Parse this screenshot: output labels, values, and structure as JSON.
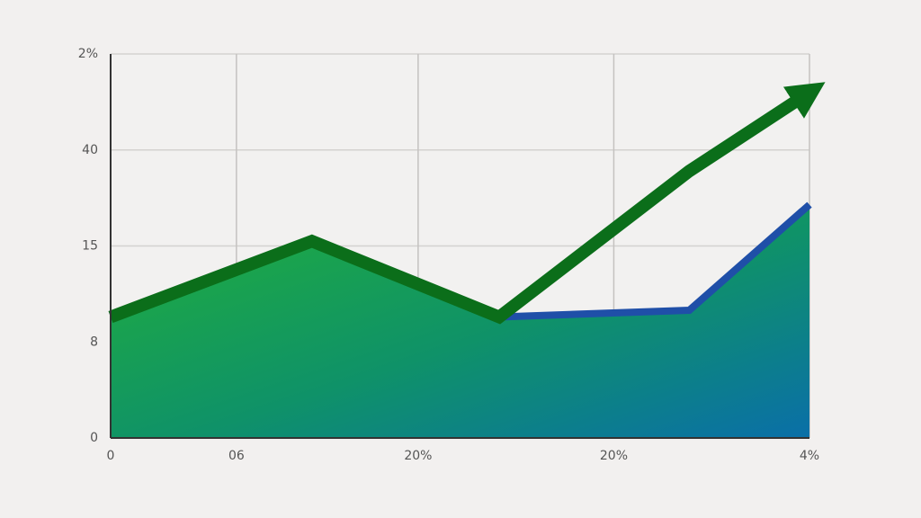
{
  "chart_data": {
    "type": "area",
    "x": [
      0,
      28.8,
      55.6,
      82.8,
      100
    ],
    "xlim": [
      0,
      100
    ],
    "xticks": [
      0,
      {
        "value": 18,
        "label": "06"
      },
      {
        "value": 44,
        "label": "20%"
      },
      {
        "value": 72,
        "label": "20%"
      },
      {
        "value": 100,
        "label": "4%"
      }
    ],
    "ylim": [
      0,
      4
    ],
    "yticks": [
      0,
      {
        "value": 1,
        "label": "8"
      },
      {
        "value": 2,
        "label": "15"
      },
      {
        "value": 3,
        "label": "40"
      },
      {
        "value": 4,
        "label": "2%"
      }
    ],
    "grid": true,
    "series": [
      {
        "color": "#1f4fa8",
        "values": [
          1.26,
          2.05,
          1.26,
          1.33,
          2.43
        ]
      },
      {
        "color": "#0b6e1a",
        "values": [
          1.26,
          2.05,
          1.26,
          2.78,
          3.6
        ],
        "arrow": true
      }
    ]
  }
}
